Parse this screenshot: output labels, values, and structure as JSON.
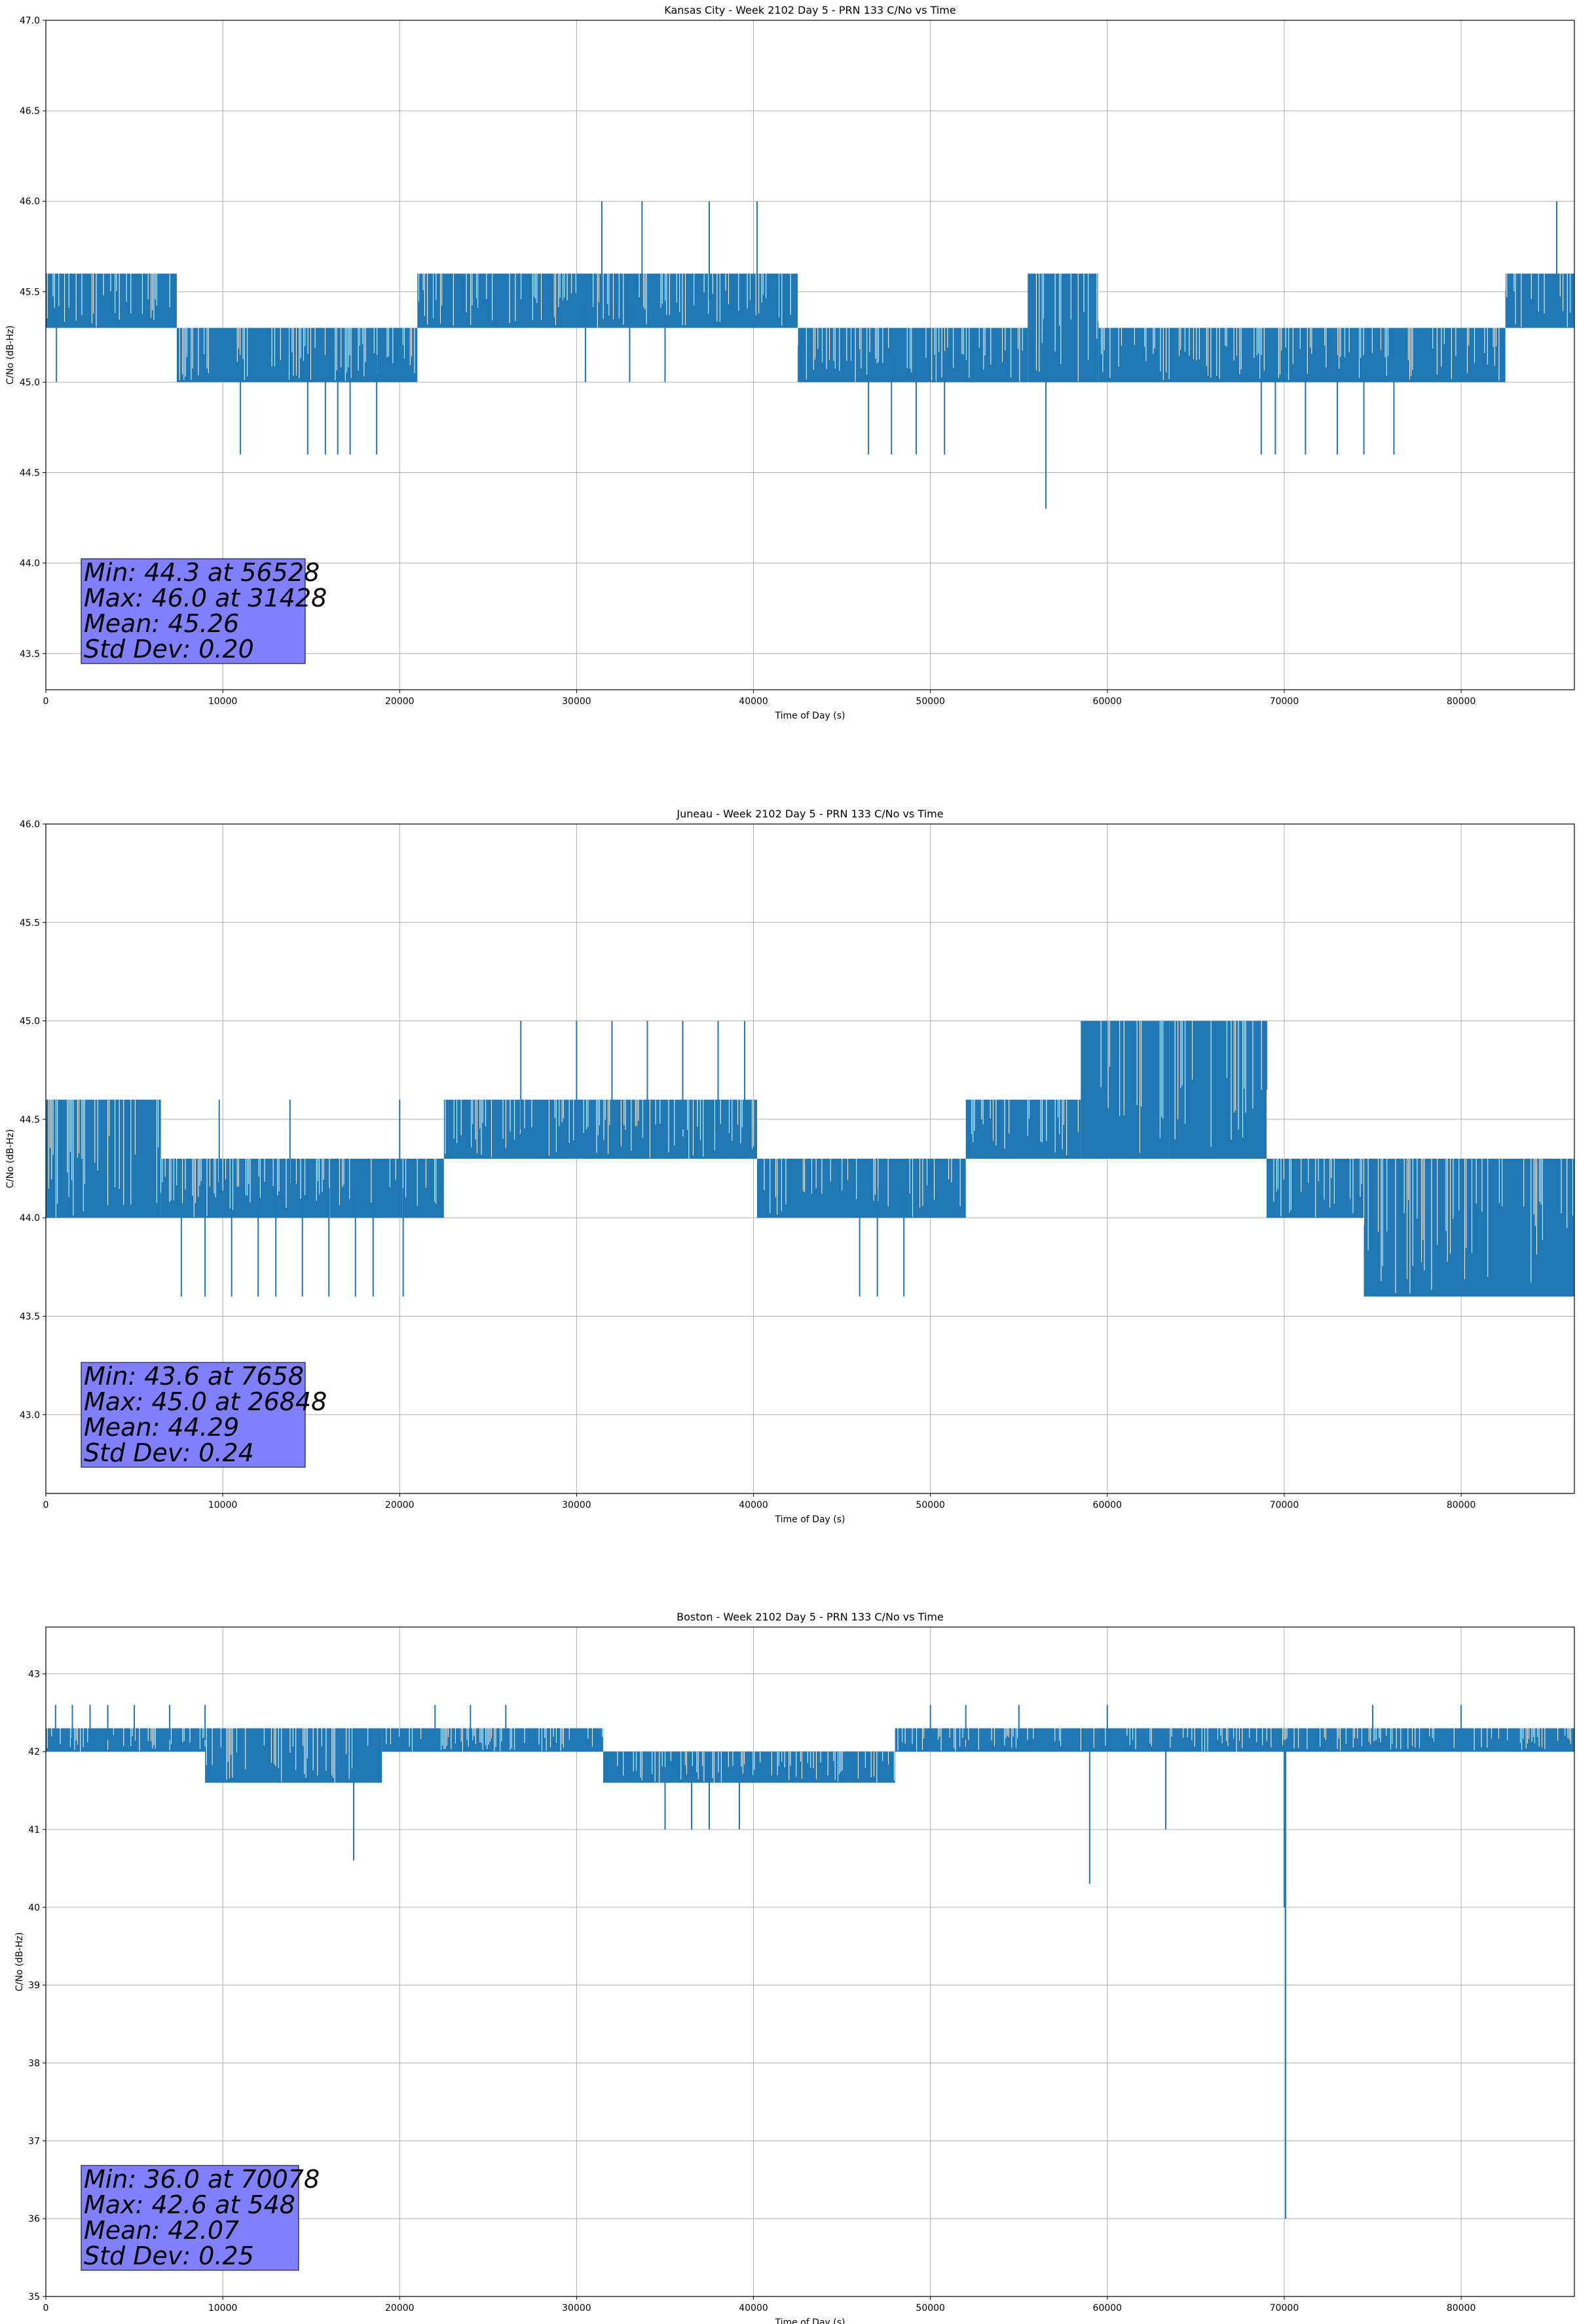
{
  "chart_data": [
    {
      "type": "line",
      "title": "Kansas City - Week 2102 Day 5 - PRN 133 C/No vs Time",
      "xlabel": "Time of Day (s)",
      "ylabel": "C/No (dB-Hz)",
      "xlim": [
        0,
        86400
      ],
      "ylim": [
        43.3,
        47.0
      ],
      "xticks": [
        0,
        10000,
        20000,
        30000,
        40000,
        50000,
        60000,
        70000,
        80000
      ],
      "yticks": [
        43.5,
        44.0,
        44.5,
        45.0,
        45.5,
        46.0,
        46.5,
        47.0
      ],
      "yticks_text": [
        "43.5",
        "44.0",
        "44.5",
        "45.0",
        "45.5",
        "46.0",
        "46.5",
        "47.0"
      ],
      "grid": true,
      "color": "#1f77b4",
      "stats": {
        "min": "Min: 44.3 at 56528",
        "max": "Max: 46.0 at 31428",
        "mean": "Mean: 45.26",
        "std": "Std Dev: 0.20"
      },
      "stats_box_color": "#8080ff",
      "series": [
        {
          "band_regimes": [
            {
              "x": [
                0,
                7400
              ],
              "low": 45.3,
              "high": 45.6
            },
            {
              "x": [
                7400,
                21000
              ],
              "low": 45.0,
              "high": 45.3
            },
            {
              "x": [
                21000,
                42500
              ],
              "low": 45.3,
              "high": 45.6
            },
            {
              "x": [
                42500,
                55500
              ],
              "low": 45.0,
              "high": 45.3
            },
            {
              "x": [
                55500,
                59500
              ],
              "low": 45.0,
              "high": 45.6
            },
            {
              "x": [
                59500,
                82500
              ],
              "low": 45.0,
              "high": 45.3
            },
            {
              "x": [
                82500,
                86400
              ],
              "low": 45.3,
              "high": 45.6
            }
          ],
          "spikes": [
            [
              31428,
              46.0
            ],
            [
              33700,
              46.0
            ],
            [
              37500,
              46.0
            ],
            [
              40200,
              46.0
            ],
            [
              85400,
              46.0
            ],
            [
              56528,
              44.3
            ],
            [
              11000,
              44.6
            ],
            [
              14800,
              44.6
            ],
            [
              15800,
              44.6
            ],
            [
              16500,
              44.6
            ],
            [
              17200,
              44.6
            ],
            [
              18700,
              44.6
            ],
            [
              46500,
              44.6
            ],
            [
              47800,
              44.6
            ],
            [
              49200,
              44.6
            ],
            [
              50800,
              44.6
            ],
            [
              68700,
              44.6
            ],
            [
              69500,
              44.6
            ],
            [
              71200,
              44.6
            ],
            [
              73000,
              44.6
            ],
            [
              74500,
              44.6
            ],
            [
              76200,
              44.6
            ],
            [
              600,
              45.0
            ],
            [
              30500,
              45.0
            ],
            [
              33000,
              45.0
            ],
            [
              35000,
              45.0
            ]
          ]
        }
      ]
    },
    {
      "type": "line",
      "title": "Juneau - Week 2102 Day 5 - PRN 133 C/No vs Time",
      "xlabel": "Time of Day (s)",
      "ylabel": "C/No (dB-Hz)",
      "xlim": [
        0,
        86400
      ],
      "ylim": [
        42.6,
        46.0
      ],
      "xticks": [
        0,
        10000,
        20000,
        30000,
        40000,
        50000,
        60000,
        70000,
        80000
      ],
      "yticks": [
        43.0,
        43.5,
        44.0,
        44.5,
        45.0,
        45.5,
        46.0
      ],
      "yticks_text": [
        "43.0",
        "43.5",
        "44.0",
        "44.5",
        "45.0",
        "45.5",
        "46.0"
      ],
      "grid": true,
      "color": "#1f77b4",
      "stats": {
        "min": "Min: 43.6 at 7658",
        "max": "Max: 45.0 at 26848",
        "mean": "Mean: 44.29",
        "std": "Std Dev: 0.24"
      },
      "stats_box_color": "#8080ff",
      "series": [
        {
          "band_regimes": [
            {
              "x": [
                0,
                6500
              ],
              "low": 44.0,
              "high": 44.6
            },
            {
              "x": [
                6500,
                22500
              ],
              "low": 44.0,
              "high": 44.3
            },
            {
              "x": [
                22500,
                40200
              ],
              "low": 44.3,
              "high": 44.6
            },
            {
              "x": [
                40200,
                52000
              ],
              "low": 44.0,
              "high": 44.3
            },
            {
              "x": [
                52000,
                58500
              ],
              "low": 44.3,
              "high": 44.6
            },
            {
              "x": [
                58500,
                63500
              ],
              "low": 44.3,
              "high": 45.0
            },
            {
              "x": [
                63500,
                69000
              ],
              "low": 44.3,
              "high": 45.0
            },
            {
              "x": [
                69000,
                74500
              ],
              "low": 44.0,
              "high": 44.3
            },
            {
              "x": [
                74500,
                86400
              ],
              "low": 43.6,
              "high": 44.3
            }
          ],
          "spikes": [
            [
              26848,
              45.0
            ],
            [
              30000,
              45.0
            ],
            [
              32000,
              45.0
            ],
            [
              34000,
              45.0
            ],
            [
              36000,
              45.0
            ],
            [
              38000,
              45.0
            ],
            [
              39500,
              45.0
            ],
            [
              66000,
              45.0
            ],
            [
              69000,
              45.0
            ],
            [
              7658,
              43.6
            ],
            [
              9000,
              43.6
            ],
            [
              10500,
              43.6
            ],
            [
              12000,
              43.6
            ],
            [
              13000,
              43.6
            ],
            [
              14500,
              43.6
            ],
            [
              16000,
              43.6
            ],
            [
              17500,
              43.6
            ],
            [
              18500,
              43.6
            ],
            [
              20200,
              43.6
            ],
            [
              46000,
              43.6
            ],
            [
              47000,
              43.6
            ],
            [
              48500,
              43.6
            ],
            [
              9800,
              44.6
            ],
            [
              13800,
              44.6
            ],
            [
              20000,
              44.6
            ]
          ]
        }
      ]
    },
    {
      "type": "line",
      "title": "Boston - Week 2102 Day 5 - PRN 133 C/No vs Time",
      "xlabel": "Time of Day (s)",
      "ylabel": "C/No (dB-Hz)",
      "xlim": [
        0,
        86400
      ],
      "ylim": [
        35.0,
        43.6
      ],
      "xticks": [
        0,
        10000,
        20000,
        30000,
        40000,
        50000,
        60000,
        70000,
        80000
      ],
      "yticks": [
        35,
        36,
        37,
        38,
        39,
        40,
        41,
        42,
        43
      ],
      "yticks_text": [
        "35",
        "36",
        "37",
        "38",
        "39",
        "40",
        "41",
        "42",
        "43"
      ],
      "grid": true,
      "color": "#1f77b4",
      "stats": {
        "min": "Min: 36.0 at 70078",
        "max": "Max: 42.6 at 548",
        "mean": "Mean: 42.07",
        "std": "Std Dev: 0.25"
      },
      "stats_box_color": "#8080ff",
      "series": [
        {
          "band_regimes": [
            {
              "x": [
                0,
                9000
              ],
              "low": 42.0,
              "high": 42.3
            },
            {
              "x": [
                9000,
                19000
              ],
              "low": 41.6,
              "high": 42.3
            },
            {
              "x": [
                19000,
                31500
              ],
              "low": 42.0,
              "high": 42.3
            },
            {
              "x": [
                31500,
                48000
              ],
              "low": 41.6,
              "high": 42.0
            },
            {
              "x": [
                48000,
                86400
              ],
              "low": 42.0,
              "high": 42.3
            }
          ],
          "spikes": [
            [
              548,
              42.6
            ],
            [
              1500,
              42.6
            ],
            [
              2500,
              42.6
            ],
            [
              3500,
              42.6
            ],
            [
              5000,
              42.6
            ],
            [
              7000,
              42.6
            ],
            [
              9000,
              42.6
            ],
            [
              22000,
              42.6
            ],
            [
              24000,
              42.6
            ],
            [
              26000,
              42.6
            ],
            [
              50000,
              42.6
            ],
            [
              52000,
              42.6
            ],
            [
              55000,
              42.6
            ],
            [
              60000,
              42.6
            ],
            [
              75000,
              42.6
            ],
            [
              80000,
              42.6
            ],
            [
              70078,
              36.0
            ],
            [
              70000,
              40.0
            ],
            [
              17400,
              40.6
            ],
            [
              59000,
              40.3
            ],
            [
              63300,
              41.0
            ],
            [
              35000,
              41.0
            ],
            [
              36500,
              41.0
            ],
            [
              37500,
              41.0
            ],
            [
              39200,
              41.0
            ]
          ]
        }
      ]
    }
  ]
}
